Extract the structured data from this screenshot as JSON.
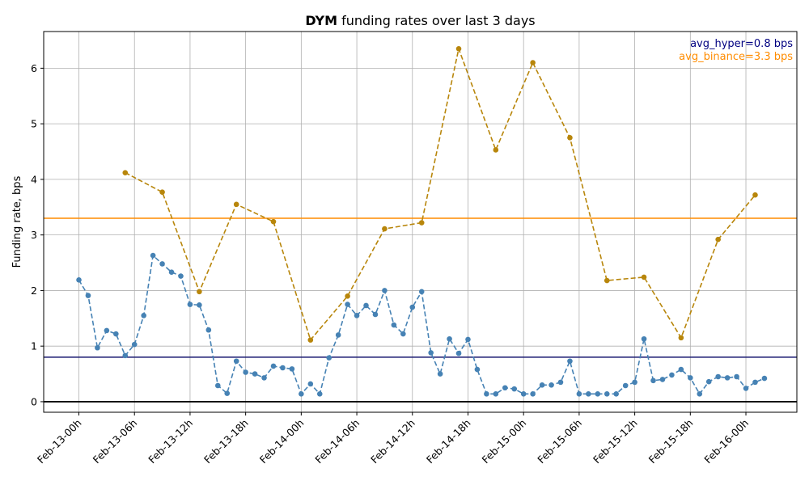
{
  "chart_data": {
    "type": "line",
    "title_bold": "DYM",
    "title_rest": " funding rates over last 3 days",
    "ylabel": "Funding rate, bps",
    "xlabel": "",
    "grid": true,
    "x_ticks": [
      "Feb-13-00h",
      "Feb-13-06h",
      "Feb-13-12h",
      "Feb-13-18h",
      "Feb-14-00h",
      "Feb-14-06h",
      "Feb-14-12h",
      "Feb-14-18h",
      "Feb-15-00h",
      "Feb-15-06h",
      "Feb-15-12h",
      "Feb-15-18h",
      "Feb-16-00h"
    ],
    "x_range_hours": [
      -3.8,
      77.5
    ],
    "y_ticks": [
      "0",
      "1",
      "2",
      "3",
      "4",
      "5",
      "6"
    ],
    "ylim": [
      -0.19,
      6.66
    ],
    "series": [
      {
        "color": "#4682b4",
        "style": "dashed",
        "x_hours": [
          0,
          1,
          2,
          3,
          4,
          5,
          6,
          7,
          8,
          9,
          10,
          11,
          12,
          13,
          14,
          15,
          16,
          17,
          18,
          19,
          20,
          21,
          22,
          23,
          24,
          25,
          26,
          27,
          28,
          29,
          30,
          31,
          32,
          33,
          34,
          35,
          36,
          37,
          38,
          39,
          40,
          41,
          42,
          43,
          44,
          45,
          46,
          47,
          48,
          49,
          50,
          51,
          52,
          53,
          54,
          55,
          56,
          57,
          58,
          59,
          60,
          61,
          62,
          63,
          64,
          65,
          66,
          67,
          68,
          69,
          70,
          71,
          72,
          73,
          74
        ],
        "values": [
          2.19,
          1.91,
          0.97,
          1.28,
          1.22,
          0.83,
          1.03,
          1.55,
          2.63,
          2.48,
          2.33,
          2.26,
          1.75,
          1.74,
          1.29,
          0.29,
          0.15,
          0.73,
          0.53,
          0.5,
          0.43,
          0.64,
          0.61,
          0.59,
          0.14,
          0.32,
          0.14,
          0.79,
          1.2,
          1.75,
          1.55,
          1.73,
          1.57,
          2.0,
          1.38,
          1.22,
          1.7,
          1.98,
          0.88,
          0.5,
          1.13,
          0.87,
          1.12,
          0.58,
          0.14,
          0.14,
          0.25,
          0.23,
          0.14,
          0.14,
          0.3,
          0.3,
          0.35,
          0.73,
          0.14,
          0.14,
          0.14,
          0.14,
          0.14,
          0.29,
          0.35,
          1.13,
          0.38,
          0.4,
          0.48,
          0.58,
          0.43,
          0.14,
          0.36,
          0.45,
          0.43,
          0.45,
          0.24,
          0.35,
          0.42
        ]
      },
      {
        "color": "#b8860b",
        "style": "dashed",
        "x_hours": [
          5,
          9,
          13,
          17,
          21,
          25,
          29,
          33,
          37,
          41,
          45,
          49,
          53,
          57,
          61,
          65,
          69,
          73
        ],
        "values": [
          4.12,
          3.77,
          1.98,
          3.55,
          3.24,
          1.11,
          1.9,
          3.11,
          3.22,
          6.35,
          4.53,
          6.1,
          4.75,
          2.18,
          2.24,
          1.15,
          2.92,
          3.72
        ]
      }
    ],
    "hlines": [
      {
        "value": 0.8,
        "color": "#191970"
      },
      {
        "value": 3.3,
        "color": "#ff8c00"
      },
      {
        "value": 0.0,
        "color": "#000000"
      }
    ],
    "annotations": [
      {
        "text": "avg_hyper=0.8 bps",
        "color": "#000080"
      },
      {
        "text": "avg_binance=3.3 bps",
        "color": "#ff8c00"
      }
    ]
  }
}
